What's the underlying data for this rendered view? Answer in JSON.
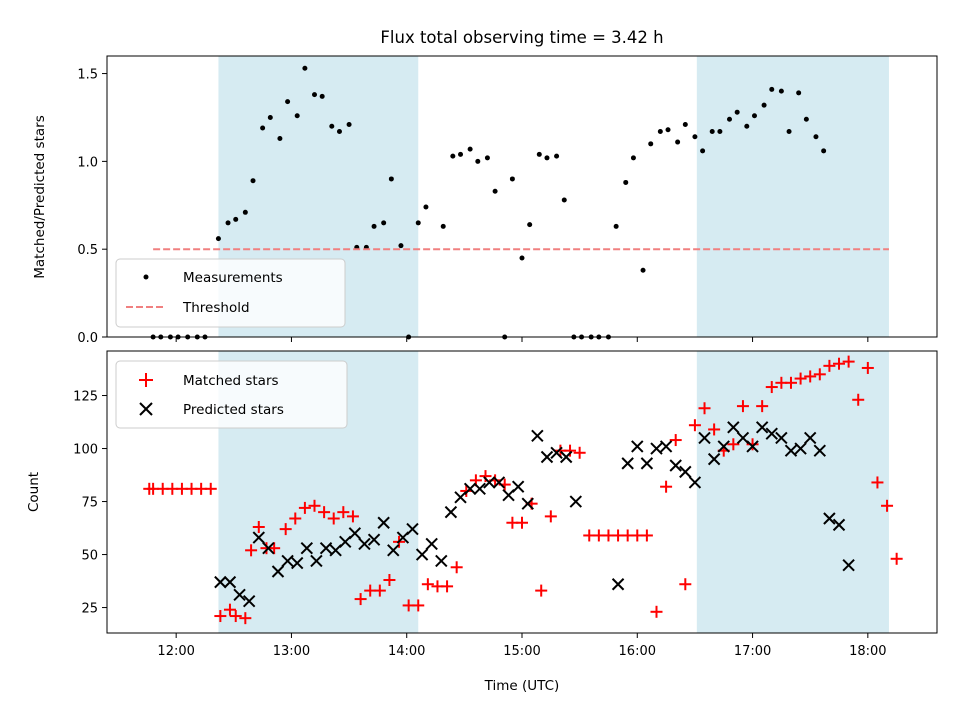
{
  "chart_data": {
    "title": "Flux total observing time = 3.42 h",
    "shaded_intervals": [
      [
        "12:22",
        "14:06"
      ],
      [
        "16:31",
        "18:11"
      ]
    ],
    "shade_color": "#add8e6",
    "x_ticks": [
      "12:00",
      "13:00",
      "14:00",
      "15:00",
      "16:00",
      "17:00",
      "18:00"
    ],
    "xlabel": "Time (UTC)",
    "xlim": [
      "11:24",
      "18:36"
    ],
    "panels": [
      {
        "type": "scatter",
        "ylabel": "Matched/Predicted stars",
        "ylim": [
          0,
          1.6
        ],
        "y_ticks": [
          "0.0",
          "0.5",
          "1.0",
          "1.5"
        ],
        "legend_position": "lower-left",
        "series": [
          {
            "name": "Measurements",
            "marker": "dot",
            "color": "#000000",
            "points": [
              [
                "11:48",
                0
              ],
              [
                "11:52",
                0
              ],
              [
                "11:57",
                0
              ],
              [
                "12:01",
                0
              ],
              [
                "12:06",
                0
              ],
              [
                "12:11",
                0
              ],
              [
                "12:15",
                0
              ],
              [
                "12:22",
                0.56
              ],
              [
                "12:27",
                0.65
              ],
              [
                "12:31",
                0.67
              ],
              [
                "12:36",
                0.71
              ],
              [
                "12:40",
                0.89
              ],
              [
                "12:45",
                1.19
              ],
              [
                "12:49",
                1.25
              ],
              [
                "12:54",
                1.13
              ],
              [
                "12:58",
                1.34
              ],
              [
                "13:03",
                1.26
              ],
              [
                "13:07",
                1.53
              ],
              [
                "13:12",
                1.38
              ],
              [
                "13:16",
                1.37
              ],
              [
                "13:21",
                1.2
              ],
              [
                "13:25",
                1.17
              ],
              [
                "13:30",
                1.21
              ],
              [
                "13:34",
                0.51
              ],
              [
                "13:39",
                0.51
              ],
              [
                "13:43",
                0.63
              ],
              [
                "13:48",
                0.65
              ],
              [
                "13:52",
                0.9
              ],
              [
                "13:57",
                0.52
              ],
              [
                "14:01",
                0
              ],
              [
                "14:06",
                0.65
              ],
              [
                "14:10",
                0.74
              ],
              [
                "14:19",
                0.63
              ],
              [
                "14:24",
                1.03
              ],
              [
                "14:28",
                1.04
              ],
              [
                "14:33",
                1.07
              ],
              [
                "14:37",
                1.0
              ],
              [
                "14:42",
                1.02
              ],
              [
                "14:46",
                0.83
              ],
              [
                "14:51",
                0
              ],
              [
                "14:55",
                0.9
              ],
              [
                "15:00",
                0.45
              ],
              [
                "15:04",
                0.64
              ],
              [
                "15:09",
                1.04
              ],
              [
                "15:13",
                1.02
              ],
              [
                "15:18",
                1.03
              ],
              [
                "15:22",
                0.78
              ],
              [
                "15:27",
                0
              ],
              [
                "15:31",
                0
              ],
              [
                "15:36",
                0
              ],
              [
                "15:40",
                0
              ],
              [
                "15:45",
                0
              ],
              [
                "15:49",
                0.63
              ],
              [
                "15:54",
                0.88
              ],
              [
                "15:58",
                1.02
              ],
              [
                "16:03",
                0.38
              ],
              [
                "16:07",
                1.1
              ],
              [
                "16:12",
                1.17
              ],
              [
                "16:16",
                1.18
              ],
              [
                "16:21",
                1.11
              ],
              [
                "16:25",
                1.21
              ],
              [
                "16:30",
                1.14
              ],
              [
                "16:34",
                1.06
              ],
              [
                "16:39",
                1.17
              ],
              [
                "16:43",
                1.17
              ],
              [
                "16:48",
                1.24
              ],
              [
                "16:52",
                1.28
              ],
              [
                "16:57",
                1.2
              ],
              [
                "17:01",
                1.26
              ],
              [
                "17:06",
                1.32
              ],
              [
                "17:10",
                1.41
              ],
              [
                "17:15",
                1.4
              ],
              [
                "17:19",
                1.17
              ],
              [
                "17:24",
                1.39
              ],
              [
                "17:28",
                1.24
              ],
              [
                "17:33",
                1.14
              ],
              [
                "17:37",
                1.06
              ]
            ]
          },
          {
            "name": "Threshold",
            "type": "line",
            "style": "dashed",
            "color": "#f08080",
            "points": [
              [
                "11:48",
                0.5
              ],
              [
                "18:11",
                0.5
              ]
            ]
          }
        ]
      },
      {
        "type": "scatter",
        "ylabel": "Count",
        "ylim": [
          13,
          146
        ],
        "y_ticks": [
          "25",
          "50",
          "75",
          "100",
          "125"
        ],
        "legend_position": "upper-left",
        "series": [
          {
            "name": "Matched stars",
            "marker": "plus",
            "color": "#ff0000",
            "points": [
              [
                "11:46",
                81
              ],
              [
                "11:48",
                81
              ],
              [
                "11:53",
                81
              ],
              [
                "11:58",
                81
              ],
              [
                "12:03",
                81
              ],
              [
                "12:08",
                81
              ],
              [
                "12:13",
                81
              ],
              [
                "12:18",
                81
              ],
              [
                "12:23",
                21
              ],
              [
                "12:28",
                24
              ],
              [
                "12:31",
                21
              ],
              [
                "12:36",
                20
              ],
              [
                "12:39",
                52
              ],
              [
                "12:43",
                63
              ],
              [
                "12:47",
                53
              ],
              [
                "12:51",
                53
              ],
              [
                "12:57",
                62
              ],
              [
                "13:02",
                67
              ],
              [
                "13:07",
                72
              ],
              [
                "13:12",
                73
              ],
              [
                "13:17",
                70
              ],
              [
                "13:22",
                67
              ],
              [
                "13:27",
                70
              ],
              [
                "13:32",
                68
              ],
              [
                "13:36",
                29
              ],
              [
                "13:41",
                33
              ],
              [
                "13:46",
                33
              ],
              [
                "13:51",
                38
              ],
              [
                "13:56",
                56
              ],
              [
                "14:01",
                26
              ],
              [
                "14:06",
                26
              ],
              [
                "14:11",
                36
              ],
              [
                "14:16",
                35
              ],
              [
                "14:21",
                35
              ],
              [
                "14:26",
                44
              ],
              [
                "14:31",
                80
              ],
              [
                "14:36",
                85
              ],
              [
                "14:41",
                87
              ],
              [
                "14:46",
                85
              ],
              [
                "14:51",
                83
              ],
              [
                "14:55",
                65
              ],
              [
                "15:00",
                65
              ],
              [
                "15:05",
                74
              ],
              [
                "15:10",
                33
              ],
              [
                "15:15",
                68
              ],
              [
                "15:20",
                99
              ],
              [
                "15:25",
                99
              ],
              [
                "15:30",
                98
              ],
              [
                "15:35",
                59
              ],
              [
                "15:40",
                59
              ],
              [
                "15:45",
                59
              ],
              [
                "15:50",
                59
              ],
              [
                "15:55",
                59
              ],
              [
                "16:00",
                59
              ],
              [
                "16:05",
                59
              ],
              [
                "16:10",
                23
              ],
              [
                "16:15",
                82
              ],
              [
                "16:20",
                104
              ],
              [
                "16:25",
                36
              ],
              [
                "16:30",
                111
              ],
              [
                "16:35",
                119
              ],
              [
                "16:40",
                109
              ],
              [
                "16:45",
                99
              ],
              [
                "16:50",
                102
              ],
              [
                "16:55",
                120
              ],
              [
                "17:00",
                102
              ],
              [
                "17:05",
                120
              ],
              [
                "17:10",
                129
              ],
              [
                "17:15",
                131
              ],
              [
                "17:20",
                131
              ],
              [
                "17:25",
                133
              ],
              [
                "17:30",
                134
              ],
              [
                "17:35",
                135
              ],
              [
                "17:40",
                139
              ],
              [
                "17:45",
                140
              ],
              [
                "17:50",
                141
              ],
              [
                "17:55",
                123
              ],
              [
                "18:00",
                138
              ],
              [
                "18:05",
                84
              ],
              [
                "18:10",
                73
              ],
              [
                "18:15",
                48
              ]
            ]
          },
          {
            "name": "Predicted stars",
            "marker": "x",
            "color": "#000000",
            "points": [
              [
                "12:23",
                37
              ],
              [
                "12:28",
                37
              ],
              [
                "12:33",
                31
              ],
              [
                "12:38",
                28
              ],
              [
                "12:43",
                58
              ],
              [
                "12:48",
                53
              ],
              [
                "12:53",
                42
              ],
              [
                "12:58",
                47
              ],
              [
                "13:03",
                46
              ],
              [
                "13:08",
                53
              ],
              [
                "13:13",
                47
              ],
              [
                "13:18",
                53
              ],
              [
                "13:23",
                52
              ],
              [
                "13:28",
                56
              ],
              [
                "13:33",
                60
              ],
              [
                "13:38",
                55
              ],
              [
                "13:43",
                57
              ],
              [
                "13:48",
                65
              ],
              [
                "13:53",
                52
              ],
              [
                "13:58",
                58
              ],
              [
                "14:03",
                62
              ],
              [
                "14:08",
                50
              ],
              [
                "14:13",
                55
              ],
              [
                "14:18",
                47
              ],
              [
                "14:23",
                70
              ],
              [
                "14:28",
                77
              ],
              [
                "14:33",
                81
              ],
              [
                "14:38",
                81
              ],
              [
                "14:43",
                84
              ],
              [
                "14:48",
                84
              ],
              [
                "14:53",
                78
              ],
              [
                "14:58",
                82
              ],
              [
                "15:03",
                74
              ],
              [
                "15:08",
                106
              ],
              [
                "15:13",
                96
              ],
              [
                "15:18",
                98
              ],
              [
                "15:23",
                96
              ],
              [
                "15:28",
                75
              ],
              [
                "15:50",
                36
              ],
              [
                "15:55",
                93
              ],
              [
                "16:00",
                101
              ],
              [
                "16:05",
                93
              ],
              [
                "16:10",
                100
              ],
              [
                "16:15",
                101
              ],
              [
                "16:20",
                92
              ],
              [
                "16:25",
                89
              ],
              [
                "16:30",
                84
              ],
              [
                "16:35",
                105
              ],
              [
                "16:40",
                95
              ],
              [
                "16:45",
                101
              ],
              [
                "16:50",
                110
              ],
              [
                "16:55",
                105
              ],
              [
                "17:00",
                101
              ],
              [
                "17:05",
                110
              ],
              [
                "17:10",
                107
              ],
              [
                "17:15",
                105
              ],
              [
                "17:20",
                99
              ],
              [
                "17:25",
                100
              ],
              [
                "17:30",
                105
              ],
              [
                "17:35",
                99
              ],
              [
                "17:40",
                67
              ],
              [
                "17:45",
                64
              ],
              [
                "17:50",
                45
              ]
            ]
          }
        ]
      }
    ]
  }
}
